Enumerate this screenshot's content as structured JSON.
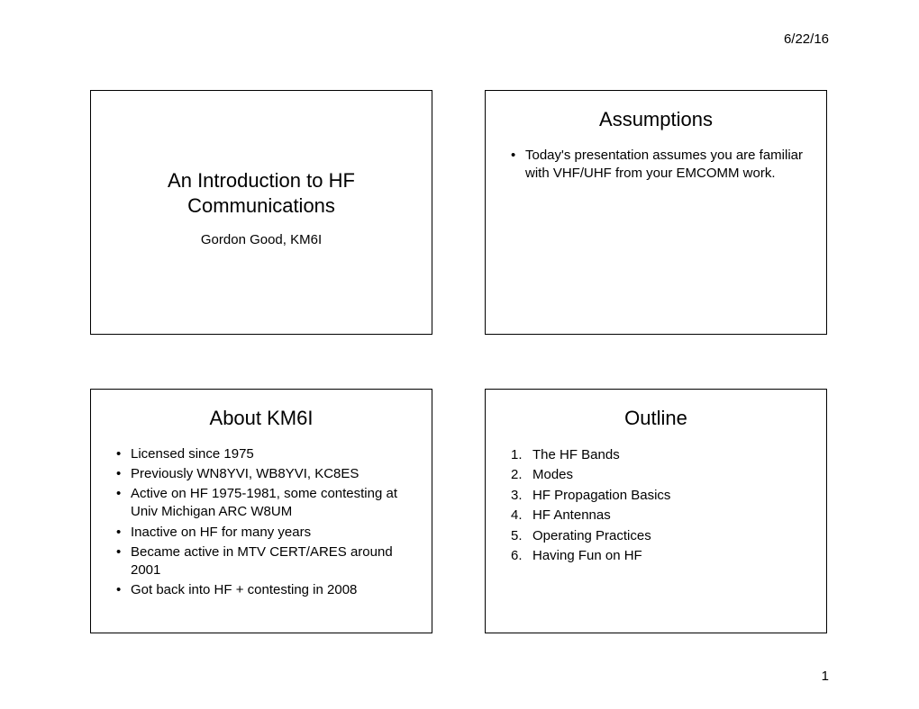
{
  "meta": {
    "date": "6/22/16",
    "page_number": "1"
  },
  "slides": {
    "s1": {
      "title_line1": "An Introduction to HF",
      "title_line2": "Communications",
      "subtitle": "Gordon Good, KM6I"
    },
    "s2": {
      "title": "Assumptions",
      "bullets": {
        "b1": "Today's presentation assumes you are familiar with VHF/UHF from your EMCOMM work."
      }
    },
    "s3": {
      "title": "About KM6I",
      "bullets": {
        "b1": "Licensed since 1975",
        "b2": "Previously WN8YVI, WB8YVI, KC8ES",
        "b3": "Active on HF 1975-1981, some contesting at Univ Michigan ARC W8UM",
        "b4": "Inactive on HF for many years",
        "b5": "Became active in MTV CERT/ARES around 2001",
        "b6": "Got back into HF + contesting in 2008"
      }
    },
    "s4": {
      "title": "Outline",
      "items": {
        "i1": "The HF Bands",
        "i2": "Modes",
        "i3": "HF Propagation Basics",
        "i4": "HF Antennas",
        "i5": "Operating Practices",
        "i6": "Having Fun on HF"
      }
    }
  }
}
